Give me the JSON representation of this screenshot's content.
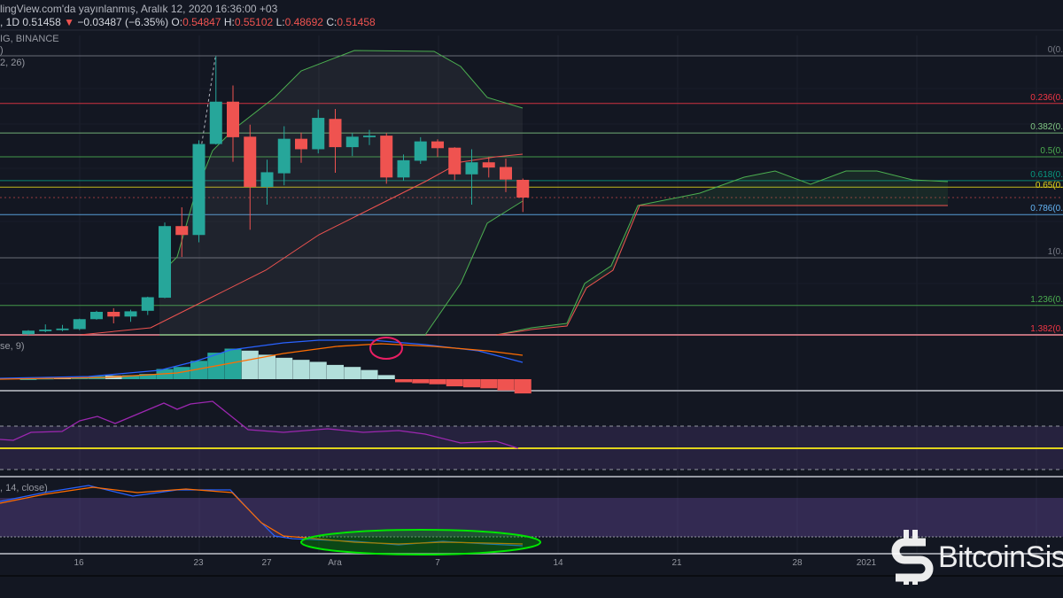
{
  "header": {
    "published": "lingView.com'da yayınlanmış, Aralık 12, 2020 16:36:00 +03",
    "symbol_prefix": ", 1D",
    "last": "0.51458",
    "change": "−0.03487 (−6.35%)",
    "o_label": "O:",
    "o": "0.54847",
    "h_label": "H:",
    "h": "0.55102",
    "l_label": "L:",
    "l": "0.48692",
    "c_label": "C:",
    "c": "0.51458",
    "down_arrow": "▼"
  },
  "labels": {
    "exchange": "IG, BINANCE",
    "fib_ind": ")",
    "ichimoku": "2, 26)",
    "macd": "se, 9)",
    "stoch": ", 14, close)"
  },
  "fib_levels": [
    {
      "level": 0,
      "label": "0(0.",
      "color": "#787b86"
    },
    {
      "level": 0.236,
      "label": "0.236(0.",
      "color": "#f23645"
    },
    {
      "level": 0.382,
      "label": "0.382(0.",
      "color": "#81c784"
    },
    {
      "level": 0.5,
      "label": "0.5(0.",
      "color": "#4caf50"
    },
    {
      "level": 0.618,
      "label": "0.618(0.",
      "color": "#089981"
    },
    {
      "level": 0.65,
      "label": "0.65(0.",
      "color": "#e0d31b"
    },
    {
      "level": 0.786,
      "label": "0.786(0.",
      "color": "#64b5f6"
    },
    {
      "level": 1,
      "label": "1(0.",
      "color": "#787b86"
    },
    {
      "level": 1.236,
      "label": "1.236(0.",
      "color": "#4caf50"
    },
    {
      "level": 1.382,
      "label": "1.382(0.",
      "color": "#f23645"
    }
  ],
  "x_axis": [
    "16",
    "23",
    "27",
    "Ara",
    "7",
    "14",
    "21",
    "28",
    "2021"
  ],
  "watermark": "BitcoinSis",
  "colors": {
    "background": "#131722",
    "up": "#26a69a",
    "down": "#ef5350",
    "rsi": "#9c27b0",
    "highlight_ellipse_macd": "#e91e63",
    "highlight_ellipse_stoch": "#00e600"
  },
  "chart_data": {
    "type": "candlestick",
    "interval": "1D",
    "exchange": "BINANCE",
    "x_start": "2020-11-13",
    "x_end": "2020-12-12",
    "candles": [
      [
        0.253,
        0.261,
        0.251,
        0.26
      ],
      [
        0.259,
        0.272,
        0.257,
        0.262
      ],
      [
        0.261,
        0.271,
        0.259,
        0.264
      ],
      [
        0.263,
        0.283,
        0.261,
        0.282
      ],
      [
        0.282,
        0.298,
        0.281,
        0.296
      ],
      [
        0.296,
        0.303,
        0.274,
        0.287
      ],
      [
        0.287,
        0.3,
        0.277,
        0.297
      ],
      [
        0.298,
        0.325,
        0.29,
        0.324
      ],
      [
        0.323,
        0.467,
        0.322,
        0.46
      ],
      [
        0.46,
        0.496,
        0.401,
        0.443
      ],
      [
        0.443,
        0.624,
        0.429,
        0.617
      ],
      [
        0.617,
        0.785,
        0.616,
        0.698
      ],
      [
        0.698,
        0.729,
        0.583,
        0.63
      ],
      [
        0.631,
        0.654,
        0.453,
        0.535
      ],
      [
        0.535,
        0.587,
        0.501,
        0.563
      ],
      [
        0.561,
        0.651,
        0.538,
        0.627
      ],
      [
        0.627,
        0.639,
        0.581,
        0.607
      ],
      [
        0.607,
        0.683,
        0.599,
        0.667
      ],
      [
        0.665,
        0.684,
        0.562,
        0.611
      ],
      [
        0.611,
        0.638,
        0.594,
        0.631
      ],
      [
        0.63,
        0.644,
        0.615,
        0.633
      ],
      [
        0.633,
        0.638,
        0.541,
        0.553
      ],
      [
        0.553,
        0.597,
        0.547,
        0.586
      ],
      [
        0.585,
        0.63,
        0.579,
        0.622
      ],
      [
        0.622,
        0.626,
        0.592,
        0.609
      ],
      [
        0.61,
        0.611,
        0.548,
        0.559
      ],
      [
        0.559,
        0.607,
        0.501,
        0.582
      ],
      [
        0.582,
        0.592,
        0.553,
        0.572
      ],
      [
        0.573,
        0.589,
        0.525,
        0.549
      ],
      [
        0.54847,
        0.55102,
        0.48692,
        0.51458
      ]
    ],
    "candle_fields": [
      "open",
      "high",
      "low",
      "close"
    ],
    "indicators": [
      "Fibonacci retracement",
      "Ichimoku",
      "Bollinger Bands",
      "MACD",
      "RSI",
      "Stochastic RSI"
    ]
  }
}
